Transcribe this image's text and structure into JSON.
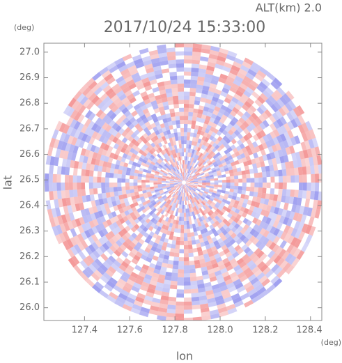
{
  "chart_data": {
    "type": "radar-field",
    "title": "2017/10/24 15:33:00",
    "subtitle": "ALT(km) 2.0",
    "x_label": "lon",
    "y_label": "lat",
    "x_unit": "(deg)",
    "y_unit": "(deg)",
    "xlim": [
      127.22,
      128.45
    ],
    "ylim": [
      25.95,
      27.035
    ],
    "xticks": [
      {
        "value": 127.4,
        "label": "127.4"
      },
      {
        "value": 127.6,
        "label": "127.6"
      },
      {
        "value": 127.8,
        "label": "127.8"
      },
      {
        "value": 128.0,
        "label": "128.0"
      },
      {
        "value": 128.2,
        "label": "128.2"
      },
      {
        "value": 128.4,
        "label": "128.4"
      }
    ],
    "yticks": [
      {
        "value": 26.0,
        "label": "26.0"
      },
      {
        "value": 26.1,
        "label": "26.1"
      },
      {
        "value": 26.2,
        "label": "26.2"
      },
      {
        "value": 26.3,
        "label": "26.3"
      },
      {
        "value": 26.4,
        "label": "26.4"
      },
      {
        "value": 26.5,
        "label": "26.5"
      },
      {
        "value": 26.6,
        "label": "26.6"
      },
      {
        "value": 26.7,
        "label": "26.7"
      },
      {
        "value": 26.8,
        "label": "26.8"
      },
      {
        "value": 26.9,
        "label": "26.9"
      },
      {
        "value": 27.0,
        "label": "27.0"
      }
    ]
  }
}
